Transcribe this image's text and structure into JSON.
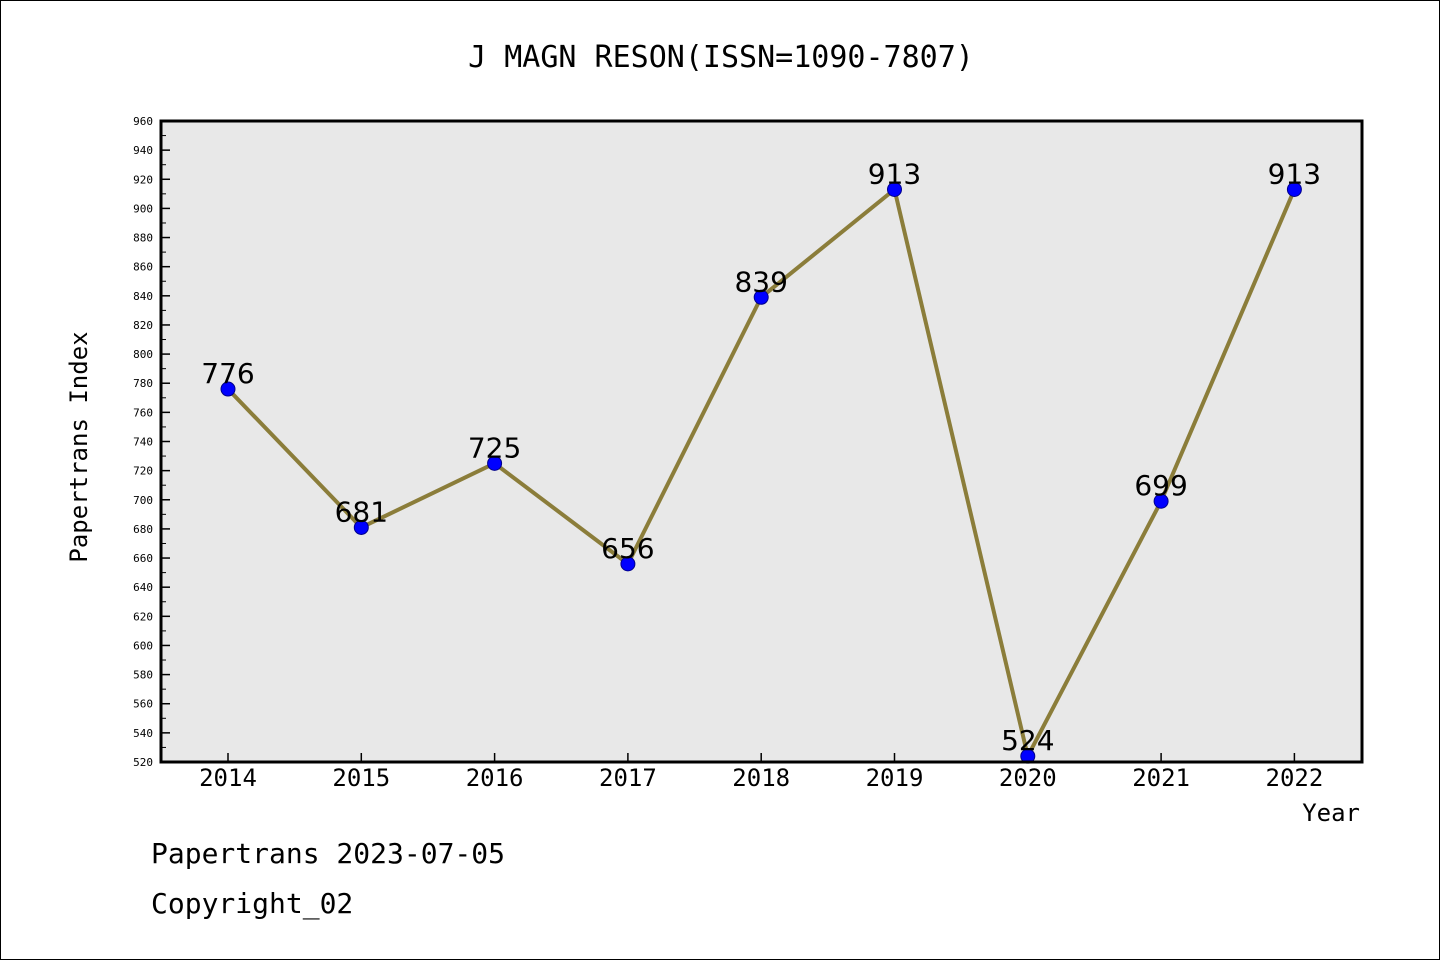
{
  "chart_data": {
    "type": "line",
    "title": "J MAGN RESON(ISSN=1090-7807)",
    "xlabel": "Year",
    "ylabel": "Papertrans Index",
    "categories": [
      "2014",
      "2015",
      "2016",
      "2017",
      "2018",
      "2019",
      "2020",
      "2021",
      "2022"
    ],
    "series": [
      {
        "values": [
          776,
          681,
          725,
          656,
          839,
          913,
          524,
          699,
          913
        ]
      }
    ],
    "ylim": [
      520,
      960
    ],
    "yticks": [
      520,
      540,
      560,
      580,
      600,
      620,
      640,
      660,
      680,
      700,
      720,
      740,
      760,
      780,
      800,
      820,
      840,
      860,
      880,
      900,
      920,
      940,
      960
    ],
    "grid": false,
    "legend": "none",
    "colors": {
      "line": "#8b7d3a",
      "marker": "#0000ff",
      "plot_bg": "#e8e8e8",
      "frame": "#000000"
    }
  },
  "footer": {
    "line1": "Papertrans 2023-07-05",
    "line2": "Copyright_02"
  }
}
